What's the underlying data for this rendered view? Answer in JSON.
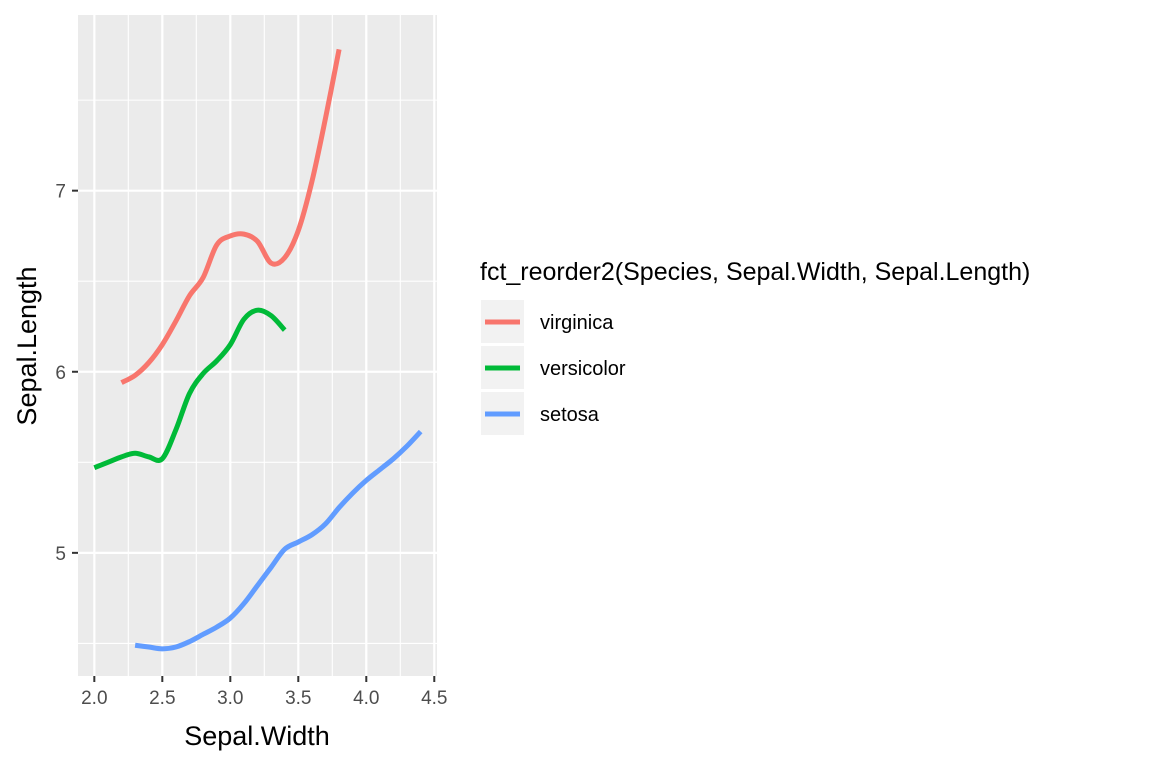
{
  "chart_data": {
    "type": "line",
    "xlabel": "Sepal.Width",
    "ylabel": "Sepal.Length",
    "xlim": [
      1.88,
      4.52
    ],
    "ylim": [
      4.32,
      7.97
    ],
    "x_ticks": [
      "2.0",
      "2.5",
      "3.0",
      "3.5",
      "4.0",
      "4.5"
    ],
    "y_ticks": [
      "5",
      "6",
      "7"
    ],
    "grid": true,
    "legend": {
      "title": "fct_reorder2(Species, Sepal.Width, Sepal.Length)",
      "placement": "right"
    },
    "series": [
      {
        "name": "virginica",
        "color": "#F8766D",
        "x": [
          2.2,
          2.3,
          2.4,
          2.5,
          2.6,
          2.7,
          2.8,
          2.9,
          3.0,
          3.1,
          3.2,
          3.3,
          3.4,
          3.5,
          3.6,
          3.7,
          3.8
        ],
        "y": [
          5.94,
          5.98,
          6.05,
          6.15,
          6.28,
          6.42,
          6.52,
          6.7,
          6.75,
          6.76,
          6.72,
          6.6,
          6.63,
          6.78,
          7.05,
          7.4,
          7.78
        ]
      },
      {
        "name": "versicolor",
        "color": "#00BA38",
        "x": [
          2.0,
          2.1,
          2.2,
          2.3,
          2.4,
          2.5,
          2.6,
          2.7,
          2.8,
          2.9,
          3.0,
          3.1,
          3.2,
          3.3,
          3.4
        ],
        "y": [
          5.47,
          5.5,
          5.53,
          5.55,
          5.53,
          5.52,
          5.68,
          5.88,
          5.99,
          6.06,
          6.15,
          6.29,
          6.34,
          6.31,
          6.23
        ]
      },
      {
        "name": "setosa",
        "color": "#619CFF",
        "x": [
          2.3,
          2.4,
          2.5,
          2.6,
          2.7,
          2.8,
          2.9,
          3.0,
          3.1,
          3.2,
          3.3,
          3.4,
          3.5,
          3.6,
          3.7,
          3.8,
          3.9,
          4.0,
          4.1,
          4.2,
          4.3,
          4.4
        ],
        "y": [
          4.49,
          4.48,
          4.47,
          4.48,
          4.51,
          4.55,
          4.59,
          4.64,
          4.72,
          4.82,
          4.92,
          5.02,
          5.06,
          5.1,
          5.16,
          5.25,
          5.33,
          5.4,
          5.46,
          5.52,
          5.59,
          5.67
        ]
      }
    ]
  }
}
